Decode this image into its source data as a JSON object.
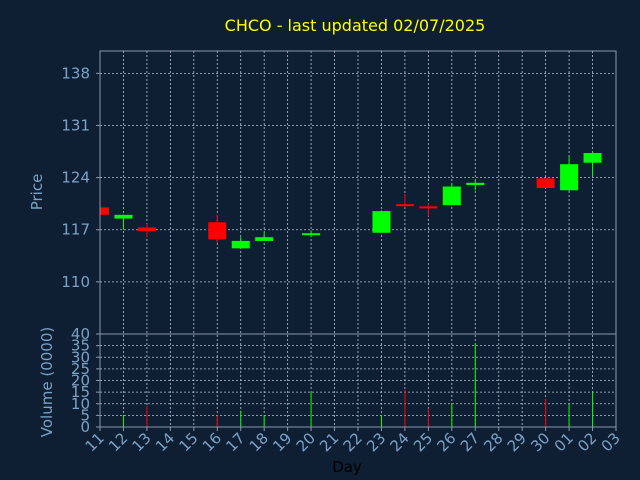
{
  "chart_data": {
    "type": "candlestick",
    "title": "CHCO - last updated 02/07/2025",
    "xlabel": "Day",
    "price_panel": {
      "ylabel": "Price",
      "yticks": [
        110,
        117,
        124,
        131,
        138
      ],
      "ylim": [
        103,
        141
      ],
      "grid": true
    },
    "volume_panel": {
      "ylabel": "Volume (0000)",
      "yticks": [
        0,
        5,
        10,
        15,
        20,
        25,
        30,
        35,
        40
      ],
      "ylim": [
        0,
        40
      ],
      "grid": true
    },
    "x_tick_labels": [
      "11",
      "12",
      "13",
      "14",
      "15",
      "16",
      "17",
      "18",
      "19",
      "20",
      "21",
      "22",
      "23",
      "24",
      "25",
      "26",
      "27",
      "28",
      "29",
      "30",
      "01",
      "02",
      "03"
    ],
    "up_color": "#00ff00",
    "down_color": "#ff0000",
    "candles": [
      {
        "day": "11",
        "open": 120.0,
        "close": 119.0,
        "high": 120.0,
        "low": 119.0,
        "volume": 0
      },
      {
        "day": "12",
        "open": 118.5,
        "close": 119.0,
        "high": 119.0,
        "low": 117.0,
        "volume": 5
      },
      {
        "day": "13",
        "open": 117.3,
        "close": 116.8,
        "high": 117.8,
        "low": 116.0,
        "volume": 9
      },
      {
        "day": "16",
        "open": 118.0,
        "close": 115.7,
        "high": 119.0,
        "low": 115.2,
        "volume": 5
      },
      {
        "day": "17",
        "open": 114.5,
        "close": 115.5,
        "high": 116.0,
        "low": 114.5,
        "volume": 7
      },
      {
        "day": "18",
        "open": 115.5,
        "close": 116.0,
        "high": 116.6,
        "low": 115.5,
        "volume": 5
      },
      {
        "day": "20",
        "open": 116.2,
        "close": 116.4,
        "high": 116.9,
        "low": 116.0,
        "volume": 15
      },
      {
        "day": "23",
        "open": 116.6,
        "close": 119.5,
        "high": 119.6,
        "low": 116.6,
        "volume": 5
      },
      {
        "day": "24",
        "open": 120.3,
        "close": 120.2,
        "high": 121.8,
        "low": 120.0,
        "volume": 16
      },
      {
        "day": "25",
        "open": 120.0,
        "close": 119.8,
        "high": 120.6,
        "low": 118.8,
        "volume": 8
      },
      {
        "day": "26",
        "open": 120.3,
        "close": 122.8,
        "high": 123.1,
        "low": 120.3,
        "volume": 10
      },
      {
        "day": "27",
        "open": 123.0,
        "close": 123.3,
        "high": 123.6,
        "low": 122.3,
        "volume": 36
      },
      {
        "day": "30",
        "open": 123.9,
        "close": 122.6,
        "high": 123.9,
        "low": 122.6,
        "volume": 12
      },
      {
        "day": "01",
        "open": 122.3,
        "close": 125.8,
        "high": 126.9,
        "low": 122.2,
        "volume": 10
      },
      {
        "day": "02",
        "open": 126.0,
        "close": 127.3,
        "high": 127.5,
        "low": 124.2,
        "volume": 15
      }
    ]
  }
}
